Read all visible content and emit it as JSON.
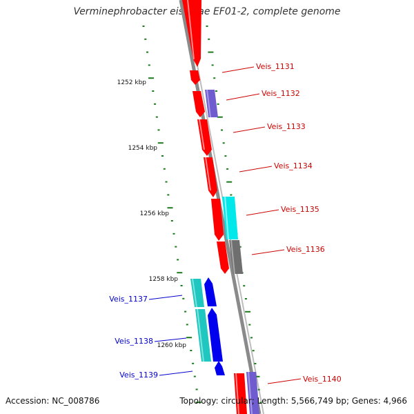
{
  "title": "Verminephrobacter eiseniae EF01-2, complete genome",
  "footer": {
    "accession": "Accession: NC_008786",
    "summary": "Topology: circular; Length: 5,566,749 bp; Genes: 4,966"
  },
  "colors": {
    "strand_plus": "#ff0000",
    "strand_minus": "#0000ee",
    "ticks": "#1a7a1a",
    "backbone": "#888888",
    "label_plus": "#cc0000",
    "label_minus": "#0000cc"
  },
  "axis_labels": [
    "1252 kbp",
    "1254 kbp",
    "1256 kbp",
    "1258 kbp",
    "1260 kbp"
  ],
  "genes": [
    {
      "name": "Veis_1131",
      "strand": "plus"
    },
    {
      "name": "Veis_1132",
      "strand": "plus"
    },
    {
      "name": "Veis_1133",
      "strand": "plus"
    },
    {
      "name": "Veis_1134",
      "strand": "plus"
    },
    {
      "name": "Veis_1135",
      "strand": "plus"
    },
    {
      "name": "Veis_1136",
      "strand": "plus"
    },
    {
      "name": "Veis_1137",
      "strand": "minus"
    },
    {
      "name": "Veis_1138",
      "strand": "minus"
    },
    {
      "name": "Veis_1139",
      "strand": "minus"
    },
    {
      "name": "Veis_1140",
      "strand": "plus"
    }
  ]
}
